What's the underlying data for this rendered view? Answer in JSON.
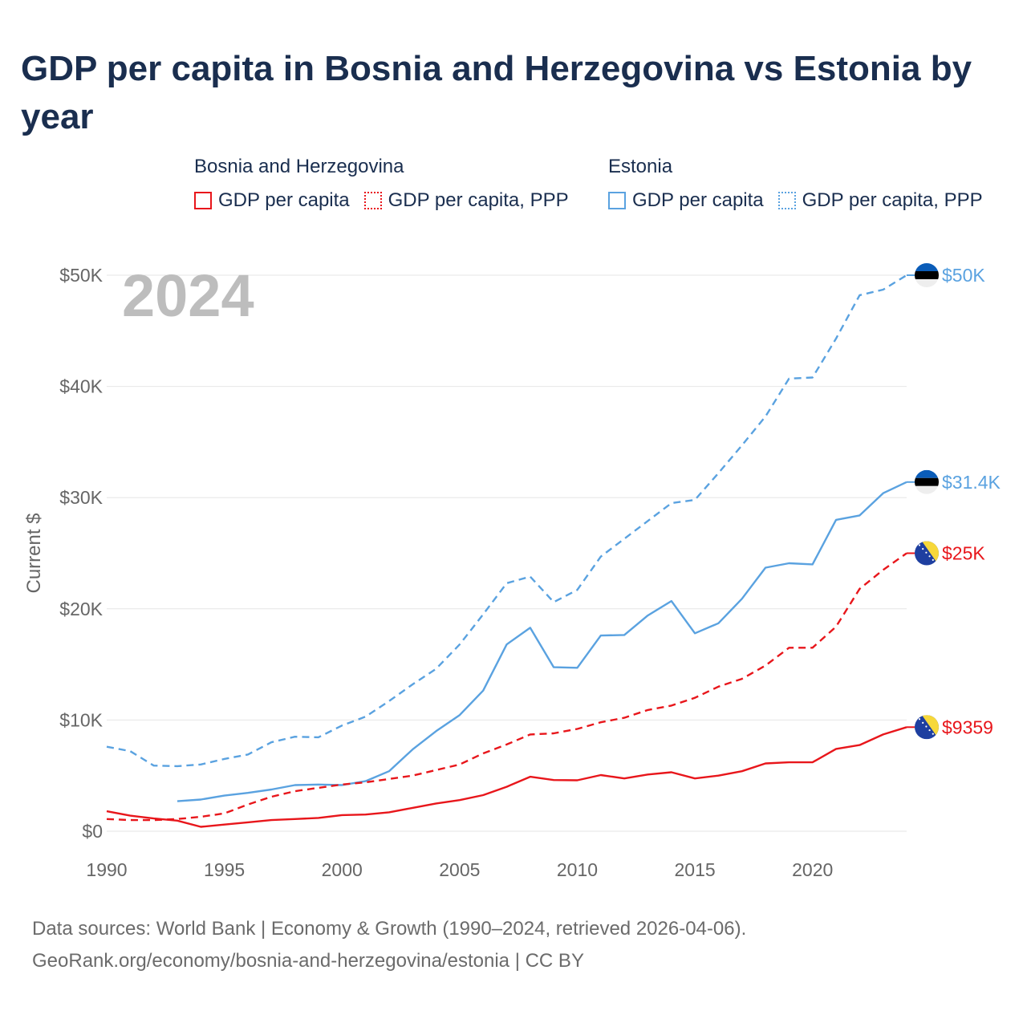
{
  "title": "GDP per capita in Bosnia and Herzegovina vs Estonia by year",
  "legend": {
    "groups": [
      {
        "name": "Bosnia and Herzegovina",
        "items": [
          {
            "label": "GDP per capita",
            "style": "solid",
            "color": "#e8161b"
          },
          {
            "label": "GDP per capita, PPP",
            "style": "dotted",
            "color": "#e8161b"
          }
        ]
      },
      {
        "name": "Estonia",
        "items": [
          {
            "label": "GDP per capita",
            "style": "solid",
            "color": "#5aa2e0"
          },
          {
            "label": "GDP per capita, PPP",
            "style": "dotted",
            "color": "#5aa2e0"
          }
        ]
      }
    ]
  },
  "chart_data": {
    "type": "line",
    "title": "GDP per capita in Bosnia and Herzegovina vs Estonia by year",
    "ylabel": "Current $",
    "xlabel": "",
    "xlim": [
      1990,
      2024
    ],
    "ylim": [
      0,
      50000
    ],
    "x_ticks": [
      1990,
      1995,
      2000,
      2005,
      2010,
      2015,
      2020
    ],
    "x_tick_labels": [
      "1990",
      "1995",
      "2000",
      "2005",
      "2010",
      "2015",
      "2020"
    ],
    "y_ticks": [
      0,
      10000,
      20000,
      30000,
      40000,
      50000
    ],
    "y_tick_labels": [
      "$0",
      "$10K",
      "$20K",
      "$30K",
      "$40K",
      "$50K"
    ],
    "year_watermark": "2024",
    "grid": true,
    "series": [
      {
        "name": "Estonia GDP per capita, PPP",
        "country": "Estonia",
        "dash": true,
        "color": "#5aa2e0",
        "end_label": "$50K",
        "flag": "ee",
        "x": [
          1990,
          1991,
          1992,
          1993,
          1994,
          1995,
          1996,
          1997,
          1998,
          1999,
          2000,
          2001,
          2002,
          2003,
          2004,
          2005,
          2006,
          2007,
          2008,
          2009,
          2010,
          2011,
          2012,
          2013,
          2014,
          2015,
          2016,
          2017,
          2018,
          2019,
          2020,
          2021,
          2022,
          2023,
          2024
        ],
        "values": [
          7600,
          7200,
          5900,
          5850,
          6000,
          6500,
          6900,
          8000,
          8500,
          8450,
          9500,
          10300,
          11700,
          13200,
          14600,
          16800,
          19500,
          22300,
          22900,
          20600,
          21700,
          24700,
          26300,
          27900,
          29500,
          29800,
          32200,
          34700,
          37300,
          40700,
          40800,
          44300,
          48200,
          48700,
          50000
        ]
      },
      {
        "name": "Estonia GDP per capita",
        "country": "Estonia",
        "dash": false,
        "color": "#5aa2e0",
        "end_label": "$31.4K",
        "flag": "ee",
        "x": [
          1993,
          1994,
          1995,
          1996,
          1997,
          1998,
          1999,
          2000,
          2001,
          2002,
          2003,
          2004,
          2005,
          2006,
          2007,
          2008,
          2009,
          2010,
          2011,
          2012,
          2013,
          2014,
          2015,
          2016,
          2017,
          2018,
          2019,
          2020,
          2021,
          2022,
          2023,
          2024
        ],
        "values": [
          2700,
          2850,
          3200,
          3450,
          3750,
          4150,
          4200,
          4150,
          4500,
          5400,
          7350,
          9000,
          10450,
          12650,
          16800,
          18300,
          14750,
          14700,
          17600,
          17650,
          19400,
          20700,
          17800,
          18700,
          20900,
          23700,
          24100,
          24000,
          28000,
          28400,
          30400,
          31400
        ]
      },
      {
        "name": "Bosnia and Herzegovina GDP per capita, PPP",
        "country": "Bosnia and Herzegovina",
        "dash": true,
        "color": "#e8161b",
        "end_label": "$25K",
        "flag": "ba",
        "x": [
          1990,
          1991,
          1992,
          1993,
          1994,
          1995,
          1996,
          1997,
          1998,
          1999,
          2000,
          2001,
          2002,
          2003,
          2004,
          2005,
          2006,
          2007,
          2008,
          2009,
          2010,
          2011,
          2012,
          2013,
          2014,
          2015,
          2016,
          2017,
          2018,
          2019,
          2020,
          2021,
          2022,
          2023,
          2024
        ],
        "values": [
          1100,
          1000,
          1000,
          1100,
          1300,
          1600,
          2400,
          3100,
          3600,
          3900,
          4200,
          4400,
          4700,
          5000,
          5500,
          6000,
          7000,
          7800,
          8700,
          8800,
          9200,
          9800,
          10200,
          10900,
          11300,
          12000,
          13000,
          13700,
          14900,
          16500,
          16500,
          18400,
          21800,
          23500,
          25000
        ]
      },
      {
        "name": "Bosnia and Herzegovina GDP per capita",
        "country": "Bosnia and Herzegovina",
        "dash": false,
        "color": "#e8161b",
        "end_label": "$9359",
        "flag": "ba",
        "x": [
          1990,
          1991,
          1992,
          1993,
          1994,
          1995,
          1996,
          1997,
          1998,
          1999,
          2000,
          2001,
          2002,
          2003,
          2004,
          2005,
          2006,
          2007,
          2008,
          2009,
          2010,
          2011,
          2012,
          2013,
          2014,
          2015,
          2016,
          2017,
          2018,
          2019,
          2020,
          2021,
          2022,
          2023,
          2024
        ],
        "values": [
          1800,
          1400,
          1150,
          950,
          400,
          600,
          800,
          1000,
          1100,
          1200,
          1450,
          1500,
          1700,
          2100,
          2500,
          2800,
          3250,
          4000,
          4900,
          4600,
          4580,
          5050,
          4750,
          5100,
          5300,
          4750,
          5000,
          5400,
          6100,
          6200,
          6200,
          7400,
          7750,
          8700,
          9359
        ]
      }
    ]
  },
  "source": {
    "line1": "Data sources: World Bank | Economy & Growth (1990–2024, retrieved 2026-04-06).",
    "line2": "GeoRank.org/economy/bosnia-and-herzegovina/estonia | CC BY"
  }
}
